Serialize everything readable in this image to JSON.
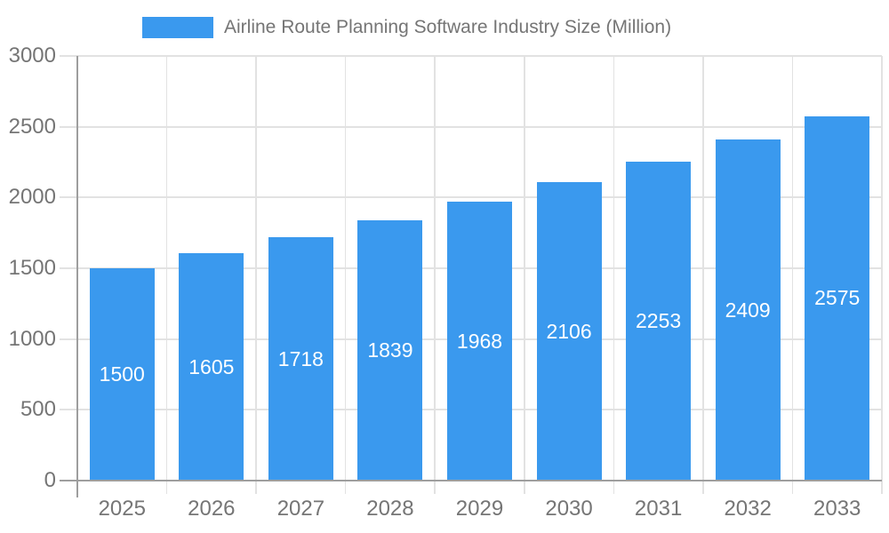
{
  "legend": {
    "label": "Airline Route Planning Software Industry Size (Million)"
  },
  "chart_data": {
    "type": "bar",
    "title": "Airline Route Planning Software Industry Size (Million)",
    "categories": [
      "2025",
      "2026",
      "2027",
      "2028",
      "2029",
      "2030",
      "2031",
      "2032",
      "2033"
    ],
    "values": [
      1500,
      1605,
      1718,
      1839,
      1968,
      2106,
      2253,
      2409,
      2575
    ],
    "xlabel": "",
    "ylabel": "",
    "ylim": [
      0,
      3000
    ],
    "yticks": [
      0,
      500,
      1000,
      1500,
      2000,
      2500,
      3000
    ],
    "grid": true,
    "legend_position": "top",
    "value_labels": "inside-center"
  },
  "colors": {
    "background": "#FFFFFF",
    "bar": "#3A99EE",
    "gridline": "#E2E2E2",
    "axis": "#9E9E9E",
    "text": "#757575",
    "value_label": "#FFFFFF"
  }
}
